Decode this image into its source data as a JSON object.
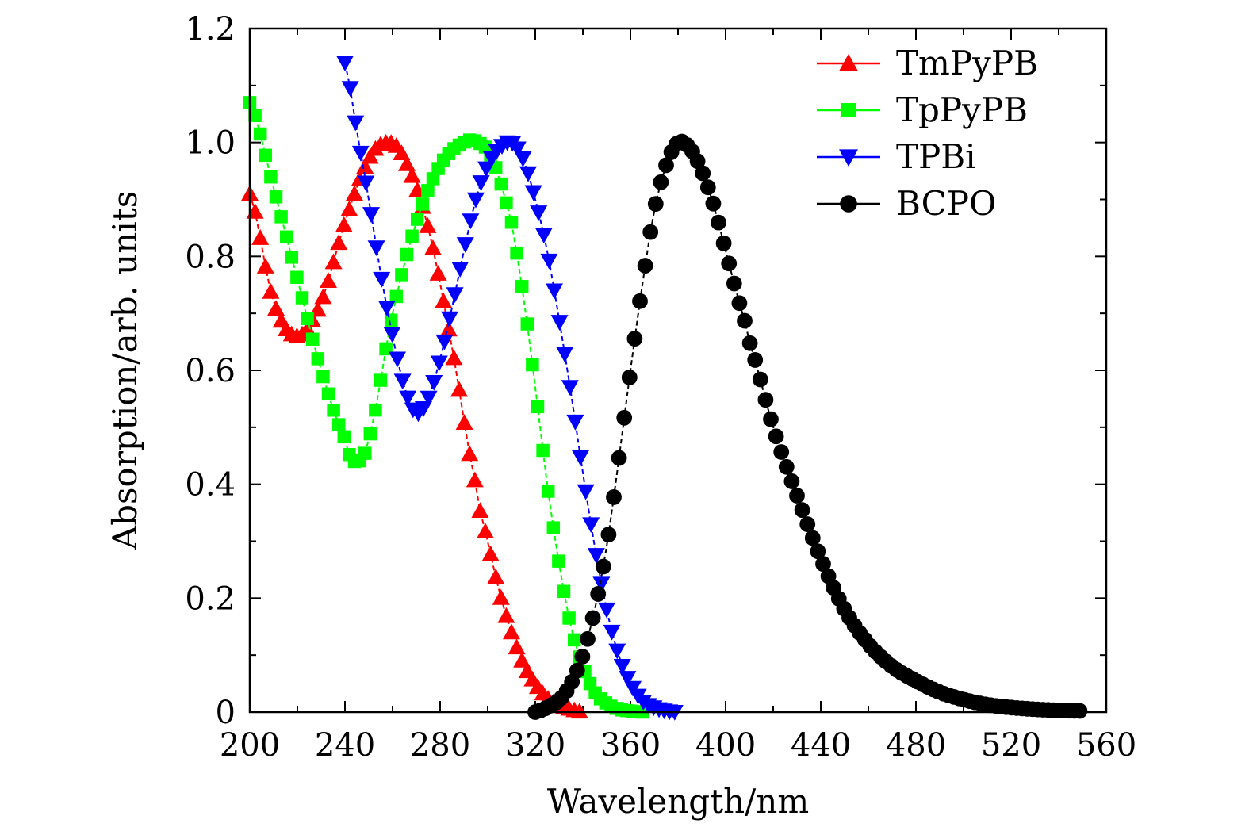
{
  "chart_data": {
    "type": "scatter",
    "xlabel": "Wavelength/nm",
    "ylabel": "Absorption/arb. units",
    "xlim": [
      200,
      560
    ],
    "ylim": [
      0,
      1.2
    ],
    "x_ticks": [
      200,
      240,
      280,
      320,
      360,
      400,
      440,
      480,
      520,
      560
    ],
    "x_tick_labels": [
      "200",
      "240",
      "280",
      "320",
      "360",
      "400",
      "440",
      "480",
      "520",
      "560"
    ],
    "y_ticks": [
      0,
      0.2,
      0.4,
      0.6,
      0.8,
      1.0,
      1.2
    ],
    "y_tick_labels": [
      "0",
      "0.2",
      "0.4",
      "0.6",
      "0.8",
      "1.0",
      "1.2"
    ],
    "legend_position": "top-right",
    "series": [
      {
        "name": "TmPyPB",
        "color": "#ff0000",
        "marker": "triangle-up",
        "x": [
          200,
          210,
          220,
          230,
          240,
          250,
          258,
          265,
          275,
          285,
          295,
          300,
          305,
          310,
          315,
          320,
          325,
          330,
          335,
          340
        ],
        "y": [
          0.91,
          0.72,
          0.66,
          0.72,
          0.86,
          0.97,
          1.0,
          0.97,
          0.85,
          0.64,
          0.4,
          0.3,
          0.21,
          0.14,
          0.085,
          0.05,
          0.025,
          0.012,
          0.005,
          0.0
        ]
      },
      {
        "name": "TpPyPB",
        "color": "#00ff00",
        "marker": "square",
        "x": [
          200,
          210,
          220,
          230,
          240,
          244,
          250,
          260,
          270,
          280,
          290,
          296,
          302,
          310,
          315,
          320,
          325,
          330,
          335,
          340,
          345,
          350,
          355,
          360,
          365
        ],
        "y": [
          1.07,
          0.92,
          0.76,
          0.6,
          0.48,
          0.44,
          0.48,
          0.7,
          0.86,
          0.96,
          1.0,
          1.0,
          0.97,
          0.86,
          0.73,
          0.57,
          0.4,
          0.26,
          0.15,
          0.08,
          0.035,
          0.015,
          0.005,
          0.002,
          0.0
        ]
      },
      {
        "name": "TPBi",
        "color": "#0000ff",
        "marker": "triangle-down",
        "x": [
          240,
          245,
          250,
          255,
          260,
          265,
          270,
          275,
          280,
          285,
          290,
          295,
          300,
          305,
          310,
          315,
          320,
          325,
          330,
          335,
          340,
          345,
          350,
          355,
          360,
          365,
          370,
          375,
          380
        ],
        "y": [
          1.14,
          1.02,
          0.9,
          0.77,
          0.66,
          0.57,
          0.525,
          0.55,
          0.62,
          0.71,
          0.81,
          0.9,
          0.96,
          0.99,
          1.0,
          0.97,
          0.9,
          0.81,
          0.69,
          0.56,
          0.42,
          0.29,
          0.18,
          0.1,
          0.05,
          0.02,
          0.008,
          0.002,
          0.0
        ]
      },
      {
        "name": "BCPO",
        "color": "#000000",
        "marker": "circle",
        "x": [
          320,
          330,
          335,
          340,
          345,
          350,
          355,
          360,
          365,
          370,
          375,
          380,
          385,
          390,
          395,
          400,
          405,
          410,
          420,
          430,
          440,
          450,
          460,
          470,
          480,
          490,
          500,
          510,
          520,
          530,
          540,
          550
        ],
        "y": [
          0.0,
          0.02,
          0.05,
          0.1,
          0.18,
          0.29,
          0.44,
          0.6,
          0.75,
          0.88,
          0.96,
          1.0,
          0.99,
          0.95,
          0.89,
          0.81,
          0.73,
          0.65,
          0.5,
          0.38,
          0.27,
          0.18,
          0.12,
          0.08,
          0.055,
          0.035,
          0.022,
          0.013,
          0.008,
          0.005,
          0.003,
          0.002
        ]
      }
    ]
  }
}
